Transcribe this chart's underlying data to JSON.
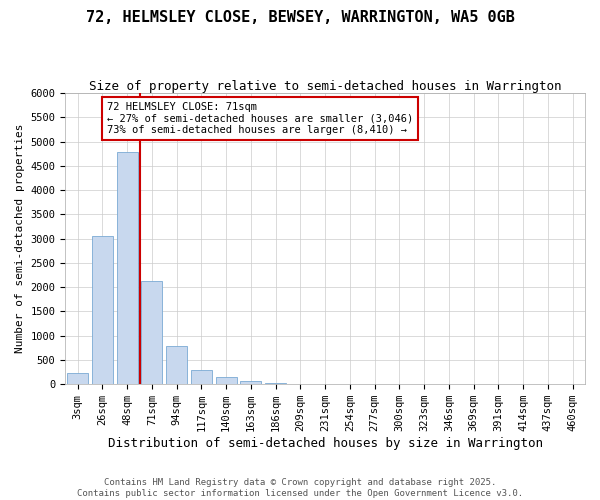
{
  "title": "72, HELMSLEY CLOSE, BEWSEY, WARRINGTON, WA5 0GB",
  "subtitle": "Size of property relative to semi-detached houses in Warrington",
  "xlabel": "Distribution of semi-detached houses by size in Warrington",
  "ylabel": "Number of semi-detached properties",
  "categories": [
    "3sqm",
    "26sqm",
    "48sqm",
    "71sqm",
    "94sqm",
    "117sqm",
    "140sqm",
    "163sqm",
    "186sqm",
    "209sqm",
    "231sqm",
    "254sqm",
    "277sqm",
    "300sqm",
    "323sqm",
    "346sqm",
    "369sqm",
    "391sqm",
    "414sqm",
    "437sqm",
    "460sqm"
  ],
  "values": [
    230,
    3050,
    4780,
    2130,
    790,
    300,
    140,
    70,
    30,
    0,
    0,
    0,
    0,
    0,
    0,
    0,
    0,
    0,
    0,
    0,
    0
  ],
  "bar_color": "#c8d8ee",
  "bar_edge_color": "#7aaad4",
  "property_line_index": 3,
  "property_line_color": "#cc0000",
  "ylim": [
    0,
    6000
  ],
  "yticks": [
    0,
    500,
    1000,
    1500,
    2000,
    2500,
    3000,
    3500,
    4000,
    4500,
    5000,
    5500,
    6000
  ],
  "annotation_title": "72 HELMSLEY CLOSE: 71sqm",
  "annotation_line1": "← 27% of semi-detached houses are smaller (3,046)",
  "annotation_line2": "73% of semi-detached houses are larger (8,410) →",
  "annotation_box_color": "#ffffff",
  "annotation_box_edge": "#cc0000",
  "footer1": "Contains HM Land Registry data © Crown copyright and database right 2025.",
  "footer2": "Contains public sector information licensed under the Open Government Licence v3.0.",
  "bg_color": "#ffffff",
  "grid_color": "#cccccc",
  "title_fontsize": 11,
  "subtitle_fontsize": 9,
  "ylabel_fontsize": 8,
  "xlabel_fontsize": 9,
  "tick_fontsize": 7.5,
  "footer_fontsize": 6.5
}
